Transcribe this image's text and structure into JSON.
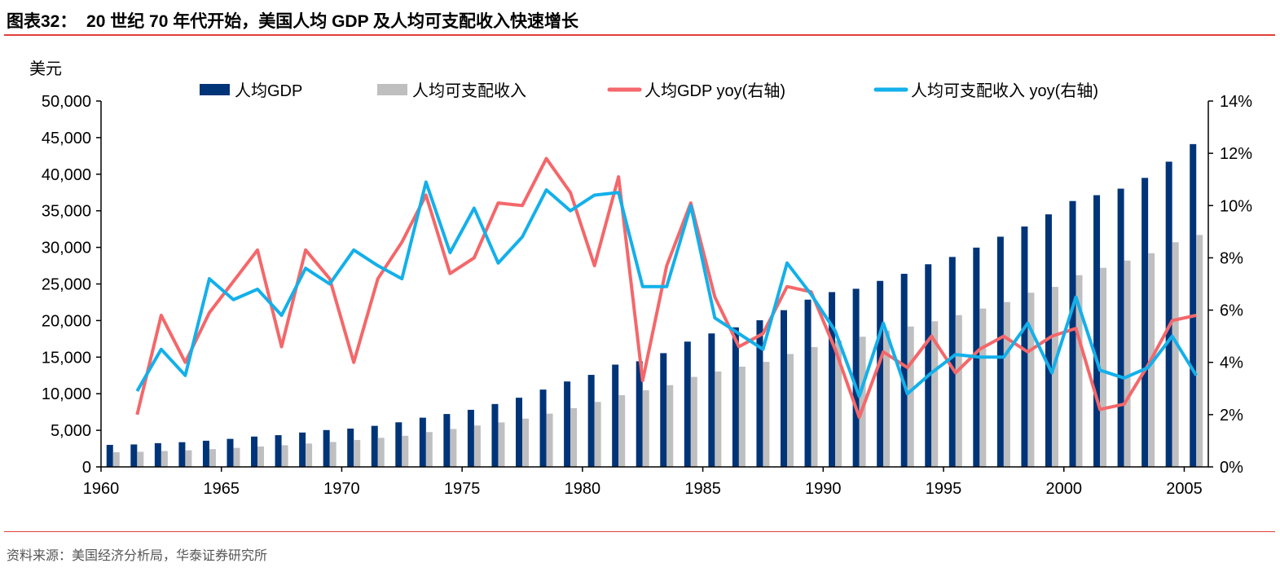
{
  "header": {
    "title": "图表32：  20 世纪 70 年代开始，美国人均 GDP 及人均可支配收入快速增长"
  },
  "footer": {
    "source": "资料来源：美国经济分析局，华泰证券研究所"
  },
  "chart_data": {
    "type": "bar+line",
    "title": "",
    "ylabel_left": "美元",
    "ylim_left": [
      0,
      50000
    ],
    "yticks_left": [
      "0",
      "5,000",
      "10,000",
      "15,000",
      "20,000",
      "25,000",
      "30,000",
      "35,000",
      "40,000",
      "45,000",
      "50,000"
    ],
    "ylim_right": [
      0,
      14
    ],
    "yticks_right": [
      "0%",
      "2%",
      "4%",
      "6%",
      "8%",
      "10%",
      "12%",
      "14%"
    ],
    "xticks": [
      "1960",
      "1965",
      "1970",
      "1975",
      "1980",
      "1985",
      "1990",
      "1995",
      "2000",
      "2005"
    ],
    "legend_placement": "top",
    "categories": [
      1960,
      1961,
      1962,
      1963,
      1964,
      1965,
      1966,
      1967,
      1968,
      1969,
      1970,
      1971,
      1972,
      1973,
      1974,
      1975,
      1976,
      1977,
      1978,
      1979,
      1980,
      1981,
      1982,
      1983,
      1984,
      1985,
      1986,
      1987,
      1988,
      1989,
      1990,
      1991,
      1992,
      1993,
      1994,
      1995,
      1996,
      1997,
      1998,
      1999,
      2000,
      2001,
      2002,
      2003,
      2004,
      2005
    ],
    "series": [
      {
        "name": "人均GDP",
        "type": "bar",
        "axis": "left",
        "color": "#003478",
        "values": [
          3007,
          3067,
          3244,
          3375,
          3574,
          3828,
          4146,
          4336,
          4696,
          5032,
          5234,
          5609,
          6094,
          6726,
          7226,
          7801,
          8592,
          9453,
          10565,
          11674,
          12575,
          13976,
          14434,
          15544,
          17121,
          18237,
          19071,
          20039,
          21417,
          22857,
          23889,
          24342,
          25419,
          26387,
          27695,
          28691,
          29968,
          31459,
          32854,
          34513,
          36335,
          37133,
          38023,
          39497,
          41712,
          44115
        ]
      },
      {
        "name": "人均可支配收入",
        "type": "bar",
        "axis": "left",
        "color": "#bfbfbf",
        "values": [
          2000,
          2070,
          2170,
          2260,
          2430,
          2600,
          2790,
          2960,
          3190,
          3400,
          3680,
          3970,
          4250,
          4760,
          5180,
          5650,
          6080,
          6600,
          7280,
          8030,
          8880,
          9810,
          10480,
          11170,
          12300,
          13040,
          13700,
          14350,
          15430,
          16380,
          17270,
          17790,
          18640,
          19190,
          19900,
          20740,
          21640,
          22530,
          23800,
          24600,
          26200,
          27200,
          28200,
          29200,
          30700,
          31700
        ]
      },
      {
        "name": "人均GDP yoy(右轴)",
        "type": "line",
        "axis": "right",
        "color": "#f4676a",
        "values": [
          null,
          2.0,
          5.8,
          4.0,
          5.9,
          7.1,
          8.3,
          4.6,
          8.3,
          7.2,
          4.0,
          7.2,
          8.6,
          10.4,
          7.4,
          8.0,
          10.1,
          10.0,
          11.8,
          10.5,
          7.7,
          11.1,
          3.3,
          7.7,
          10.1,
          6.5,
          4.6,
          5.1,
          6.9,
          6.7,
          4.5,
          1.9,
          4.4,
          3.8,
          5.0,
          3.6,
          4.5,
          5.0,
          4.4,
          5.0,
          5.3,
          2.2,
          2.4,
          3.9,
          5.6,
          5.8
        ]
      },
      {
        "name": "人均可支配收入 yoy(右轴)",
        "type": "line",
        "axis": "right",
        "color": "#13b0ea",
        "values": [
          null,
          2.9,
          4.5,
          3.5,
          7.2,
          6.4,
          6.8,
          5.8,
          7.6,
          7.0,
          8.3,
          7.7,
          7.2,
          10.9,
          8.2,
          9.9,
          7.8,
          8.8,
          10.6,
          9.8,
          10.4,
          10.5,
          6.9,
          6.9,
          10.0,
          5.7,
          5.1,
          4.5,
          7.8,
          6.6,
          5.2,
          2.7,
          5.5,
          2.8,
          3.6,
          4.3,
          4.2,
          4.2,
          5.5,
          3.6,
          6.5,
          3.7,
          3.4,
          3.8,
          5.0,
          3.5
        ]
      }
    ]
  }
}
